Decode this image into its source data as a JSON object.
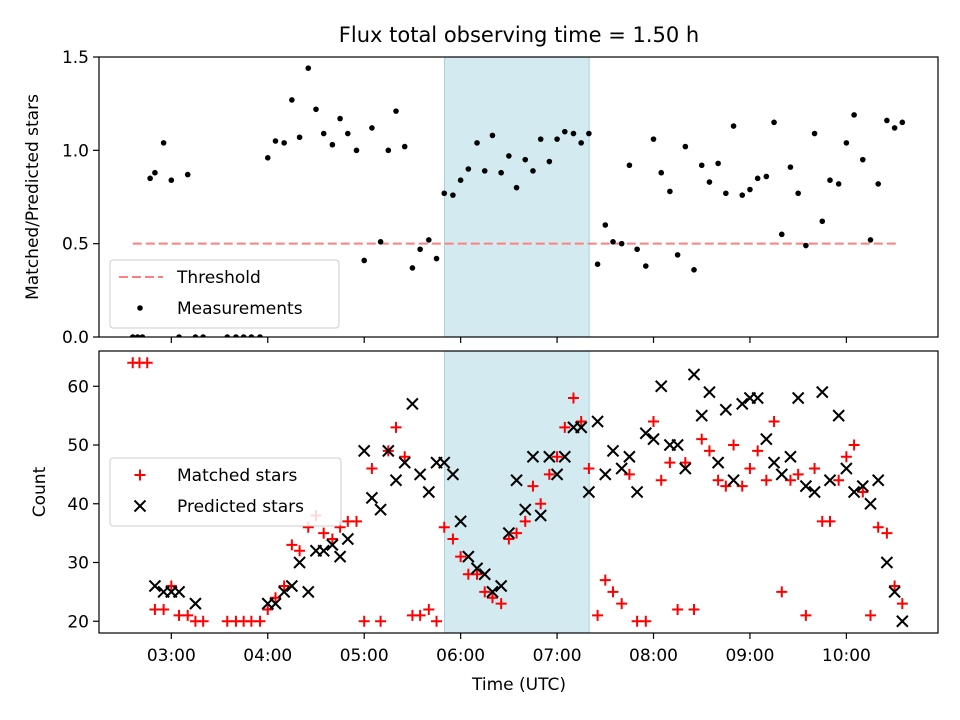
{
  "chart_data": [
    {
      "type": "scatter",
      "title": "Flux total observing time = 1.50 h",
      "xlabel": "",
      "ylabel": "Matched/Predicted stars",
      "x_unit": "hours UTC",
      "xlim": [
        2.25,
        10.95
      ],
      "ylim": [
        0,
        1.5
      ],
      "yticks": [
        0.0,
        0.5,
        1.0,
        1.5
      ],
      "ytick_labels": [
        "0.0",
        "0.5",
        "1.0",
        "1.5"
      ],
      "shaded_span": [
        5.833,
        7.333
      ],
      "shaded_color": "#d3eaf0",
      "threshold": {
        "name": "Threshold",
        "value": 0.5,
        "x_range": [
          2.6,
          10.55
        ],
        "color": "#ff7f7f"
      },
      "legend_position": "lower-left",
      "series": [
        {
          "name": "Measurements",
          "marker": "dot",
          "color": "#000000",
          "x": [
            2.6,
            2.65,
            2.7,
            2.78,
            2.83,
            2.92,
            3.0,
            3.08,
            3.17,
            3.25,
            3.33,
            3.58,
            3.67,
            3.75,
            3.83,
            3.92,
            4.0,
            4.08,
            4.17,
            4.25,
            4.33,
            4.42,
            4.5,
            4.58,
            4.67,
            4.75,
            4.83,
            4.92,
            5.0,
            5.08,
            5.17,
            5.25,
            5.33,
            5.42,
            5.5,
            5.58,
            5.67,
            5.75,
            5.83,
            5.92,
            6.0,
            6.08,
            6.17,
            6.25,
            6.33,
            6.42,
            6.5,
            6.58,
            6.67,
            6.75,
            6.83,
            6.92,
            7.0,
            7.08,
            7.17,
            7.25,
            7.33,
            7.42,
            7.5,
            7.58,
            7.67,
            7.75,
            7.83,
            7.92,
            8.0,
            8.08,
            8.17,
            8.25,
            8.33,
            8.42,
            8.5,
            8.58,
            8.67,
            8.75,
            8.83,
            8.92,
            9.0,
            9.08,
            9.17,
            9.25,
            9.33,
            9.42,
            9.5,
            9.58,
            9.67,
            9.75,
            9.83,
            9.92,
            10.0,
            10.08,
            10.17,
            10.25,
            10.33,
            10.42,
            10.5,
            10.58
          ],
          "y": [
            0.0,
            0.0,
            0.0,
            0.85,
            0.88,
            1.04,
            0.84,
            0.0,
            0.87,
            0.0,
            0.0,
            0.0,
            0.0,
            0.0,
            0.0,
            0.0,
            0.96,
            1.05,
            1.04,
            1.27,
            1.07,
            1.44,
            1.22,
            1.09,
            1.03,
            1.17,
            1.09,
            1.0,
            0.41,
            1.12,
            0.51,
            1.0,
            1.21,
            1.02,
            0.37,
            0.47,
            0.52,
            0.42,
            0.77,
            0.76,
            0.84,
            0.9,
            1.04,
            0.89,
            1.08,
            0.88,
            0.97,
            0.8,
            0.95,
            0.89,
            1.06,
            0.94,
            1.06,
            1.1,
            1.09,
            1.04,
            1.09,
            0.39,
            0.6,
            0.51,
            0.5,
            0.92,
            0.47,
            0.38,
            1.06,
            0.88,
            0.78,
            0.44,
            1.02,
            0.36,
            0.92,
            0.83,
            0.93,
            0.77,
            1.13,
            0.76,
            0.79,
            0.85,
            0.86,
            1.15,
            0.55,
            0.91,
            0.77,
            0.49,
            1.09,
            0.62,
            0.84,
            0.82,
            1.04,
            1.19,
            0.95,
            0.52,
            0.82,
            1.16,
            1.12,
            1.15
          ]
        }
      ]
    },
    {
      "type": "scatter",
      "title": "",
      "xlabel": "Time (UTC)",
      "ylabel": "Count",
      "xlim": [
        2.25,
        10.95
      ],
      "ylim": [
        18,
        66
      ],
      "yticks": [
        20,
        30,
        40,
        50,
        60
      ],
      "ytick_labels": [
        "20",
        "30",
        "40",
        "50",
        "60"
      ],
      "xticks": [
        3,
        4,
        5,
        6,
        7,
        8,
        9,
        10
      ],
      "xtick_labels": [
        "03:00",
        "04:00",
        "05:00",
        "06:00",
        "07:00",
        "08:00",
        "09:00",
        "10:00"
      ],
      "shaded_span": [
        5.833,
        7.333
      ],
      "shaded_color": "#d3eaf0",
      "legend_position": "center-left",
      "series": [
        {
          "name": "Matched stars",
          "marker": "plus",
          "color": "#ff0000",
          "x": [
            2.6,
            2.67,
            2.75,
            2.83,
            2.92,
            3.0,
            3.08,
            3.17,
            3.25,
            3.33,
            3.58,
            3.67,
            3.75,
            3.83,
            3.92,
            4.0,
            4.08,
            4.17,
            4.25,
            4.33,
            4.42,
            4.5,
            4.58,
            4.67,
            4.75,
            4.83,
            4.92,
            5.0,
            5.08,
            5.17,
            5.25,
            5.33,
            5.42,
            5.5,
            5.58,
            5.67,
            5.75,
            5.83,
            5.92,
            6.0,
            6.08,
            6.17,
            6.25,
            6.33,
            6.42,
            6.5,
            6.58,
            6.67,
            6.75,
            6.83,
            6.92,
            7.0,
            7.08,
            7.17,
            7.25,
            7.33,
            7.42,
            7.5,
            7.58,
            7.67,
            7.75,
            7.83,
            7.92,
            8.0,
            8.08,
            8.17,
            8.25,
            8.33,
            8.42,
            8.5,
            8.58,
            8.67,
            8.75,
            8.83,
            8.92,
            9.0,
            9.08,
            9.17,
            9.25,
            9.33,
            9.42,
            9.5,
            9.58,
            9.67,
            9.75,
            9.83,
            9.92,
            10.0,
            10.08,
            10.17,
            10.25,
            10.33,
            10.42,
            10.5,
            10.58
          ],
          "y": [
            64,
            64,
            64,
            22,
            22,
            26,
            21,
            21,
            20,
            20,
            20,
            20,
            20,
            20,
            20,
            22,
            24,
            26,
            33,
            32,
            36,
            38,
            35,
            34,
            36,
            37,
            37,
            20,
            46,
            20,
            49,
            53,
            48,
            21,
            21,
            22,
            20,
            36,
            34,
            31,
            28,
            28,
            25,
            24,
            23,
            34,
            35,
            37,
            43,
            40,
            45,
            48,
            53,
            58,
            54,
            46,
            21,
            27,
            25,
            23,
            45,
            20,
            20,
            54,
            44,
            47,
            22,
            47,
            22,
            51,
            49,
            44,
            43,
            50,
            43,
            46,
            49,
            44,
            54,
            25,
            44,
            45,
            21,
            46,
            37,
            37,
            44,
            48,
            50,
            42,
            21,
            36,
            35,
            26,
            23
          ]
        },
        {
          "name": "Predicted stars",
          "marker": "x",
          "color": "#000000",
          "x": [
            2.83,
            2.92,
            3.0,
            3.08,
            3.25,
            4.0,
            4.08,
            4.17,
            4.25,
            4.33,
            4.42,
            4.5,
            4.58,
            4.67,
            4.75,
            4.83,
            5.0,
            5.08,
            5.17,
            5.25,
            5.33,
            5.42,
            5.5,
            5.58,
            5.67,
            5.75,
            5.83,
            5.92,
            6.0,
            6.08,
            6.17,
            6.25,
            6.33,
            6.42,
            6.5,
            6.58,
            6.67,
            6.75,
            6.83,
            6.92,
            7.0,
            7.08,
            7.17,
            7.25,
            7.33,
            7.42,
            7.5,
            7.58,
            7.67,
            7.75,
            7.83,
            7.92,
            8.0,
            8.08,
            8.17,
            8.25,
            8.33,
            8.42,
            8.5,
            8.58,
            8.67,
            8.75,
            8.83,
            8.92,
            9.0,
            9.08,
            9.17,
            9.25,
            9.33,
            9.42,
            9.5,
            9.58,
            9.67,
            9.75,
            9.83,
            9.92,
            10.0,
            10.08,
            10.17,
            10.25,
            10.33,
            10.42,
            10.5,
            10.58
          ],
          "y": [
            26,
            25,
            25,
            25,
            23,
            23,
            23,
            25,
            26,
            30,
            25,
            32,
            32,
            33,
            31,
            34,
            49,
            41,
            39,
            49,
            44,
            47,
            57,
            45,
            42,
            47,
            47,
            45,
            37,
            31,
            29,
            28,
            25,
            26,
            35,
            44,
            39,
            48,
            38,
            48,
            45,
            48,
            53,
            53,
            42,
            54,
            45,
            49,
            46,
            48,
            42,
            52,
            51,
            60,
            50,
            50,
            46,
            62,
            55,
            59,
            47,
            56,
            44,
            57,
            58,
            58,
            51,
            47,
            45,
            48,
            58,
            43,
            42,
            59,
            44,
            55,
            46,
            42,
            43,
            40,
            44,
            30,
            25,
            20
          ]
        }
      ]
    }
  ]
}
